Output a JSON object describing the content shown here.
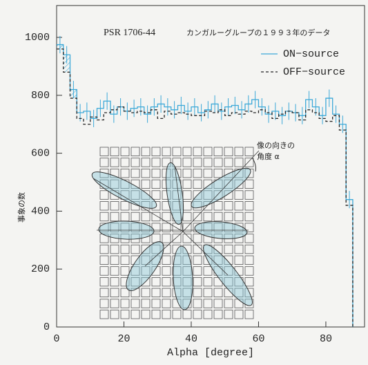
{
  "chart_data": {
    "type": "histogram",
    "title": "PSR 1706-44",
    "subtitle": "カンガルーグループの１９９３年のデータ",
    "xlabel": "Alpha [degree]",
    "ylabel": "事象の数",
    "annotations": [
      "像の向きの",
      "角度 α"
    ],
    "bins": [
      0,
      2,
      4,
      6,
      8,
      10,
      12,
      14,
      16,
      18,
      20,
      22,
      24,
      26,
      28,
      30,
      32,
      34,
      36,
      38,
      40,
      42,
      44,
      46,
      48,
      50,
      52,
      54,
      56,
      58,
      60,
      62,
      64,
      66,
      68,
      70,
      72,
      74,
      76,
      78,
      80,
      82,
      84,
      86,
      88
    ],
    "series": [
      {
        "name": "ON−source",
        "color": "#3aa8d8",
        "error": 30,
        "values": [
          975,
          940,
          820,
          740,
          745,
          720,
          755,
          780,
          735,
          760,
          745,
          755,
          760,
          735,
          760,
          770,
          760,
          750,
          765,
          745,
          760,
          740,
          750,
          770,
          745,
          760,
          765,
          750,
          770,
          785,
          760,
          735,
          745,
          730,
          745,
          740,
          730,
          785,
          760,
          730,
          790,
          735,
          700,
          440
        ]
      },
      {
        "name": "OFF−source",
        "color": "#222222",
        "dashed": true,
        "values": [
          960,
          880,
          790,
          720,
          700,
          725,
          715,
          740,
          750,
          760,
          745,
          740,
          745,
          740,
          750,
          720,
          745,
          735,
          740,
          735,
          730,
          730,
          745,
          740,
          750,
          730,
          740,
          735,
          745,
          740,
          750,
          740,
          720,
          735,
          745,
          740,
          715,
          750,
          740,
          720,
          710,
          730,
          680,
          420
        ]
      }
    ],
    "xlim": [
      0,
      91.5
    ],
    "ylim": [
      0,
      1110
    ],
    "xticks": [
      0,
      20,
      40,
      60,
      80
    ],
    "yticks": [
      0,
      200,
      400,
      600,
      800,
      1000
    ],
    "legend": "upper right"
  }
}
